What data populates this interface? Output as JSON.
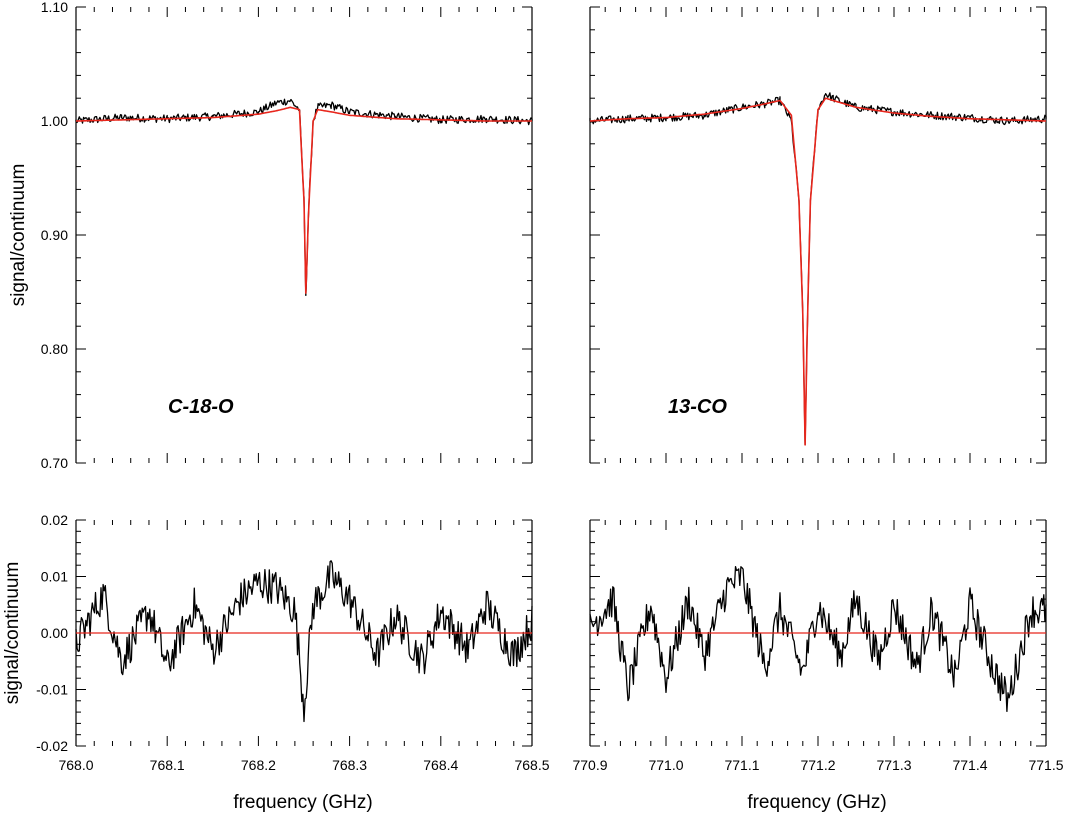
{
  "chart_data": [
    {
      "type": "line",
      "panel": "top-left",
      "label": "C-18-O",
      "xlim": [
        768.0,
        768.5
      ],
      "ylim": [
        0.7,
        1.1
      ],
      "ylabel": "signal/continuum",
      "y_tick_labels": [
        "1.10",
        "1.00",
        "0.90",
        "0.80",
        "0.70"
      ],
      "y_ticks": [
        1.1,
        1.0,
        0.9,
        0.8,
        0.7
      ],
      "series": [
        {
          "role": "data",
          "color": "#000000",
          "x": [
            768.0,
            768.05,
            768.1,
            768.15,
            768.2,
            768.22,
            768.235,
            768.245,
            768.25,
            768.252,
            768.255,
            768.26,
            768.265,
            768.28,
            768.3,
            768.35,
            768.4,
            768.45,
            768.5
          ],
          "y": [
            1.0,
            1.003,
            1.002,
            1.004,
            1.008,
            1.016,
            1.018,
            1.01,
            0.93,
            0.847,
            0.92,
            1.0,
            1.012,
            1.014,
            1.008,
            1.004,
            1.001,
            1.002,
            1.0
          ]
        },
        {
          "role": "fit",
          "color": "#e8261c",
          "x": [
            768.0,
            768.05,
            768.1,
            768.15,
            768.2,
            768.22,
            768.235,
            768.245,
            768.25,
            768.252,
            768.255,
            768.26,
            768.265,
            768.28,
            768.3,
            768.35,
            768.4,
            768.45,
            768.5
          ],
          "y": [
            1.0,
            1.001,
            1.002,
            1.003,
            1.006,
            1.009,
            1.012,
            1.01,
            0.93,
            0.849,
            0.92,
            1.0,
            1.01,
            1.008,
            1.005,
            1.002,
            1.001,
            1.0,
            1.0
          ]
        }
      ]
    },
    {
      "type": "line",
      "panel": "top-right",
      "label": "13-CO",
      "xlim": [
        770.9,
        771.5
      ],
      "ylim": [
        0.7,
        1.1
      ],
      "series": [
        {
          "role": "data",
          "color": "#000000",
          "x": [
            770.9,
            770.95,
            771.0,
            771.05,
            771.1,
            771.13,
            771.15,
            771.165,
            771.175,
            771.18,
            771.183,
            771.186,
            771.19,
            771.2,
            771.21,
            771.22,
            771.25,
            771.3,
            771.35,
            771.4,
            771.45,
            771.5
          ],
          "y": [
            1.0,
            1.002,
            1.003,
            1.005,
            1.012,
            1.015,
            1.018,
            1.0,
            0.93,
            0.83,
            0.716,
            0.82,
            0.93,
            1.01,
            1.024,
            1.02,
            1.012,
            1.008,
            1.005,
            1.003,
            1.0,
            1.002
          ]
        },
        {
          "role": "fit",
          "color": "#e8261c",
          "x": [
            770.9,
            770.95,
            771.0,
            771.05,
            771.1,
            771.13,
            771.15,
            771.165,
            771.175,
            771.18,
            771.183,
            771.186,
            771.19,
            771.2,
            771.21,
            771.22,
            771.25,
            771.3,
            771.35,
            771.4,
            771.45,
            771.5
          ],
          "y": [
            1.0,
            1.002,
            1.003,
            1.006,
            1.011,
            1.015,
            1.018,
            1.005,
            0.93,
            0.83,
            0.716,
            0.82,
            0.93,
            1.01,
            1.02,
            1.018,
            1.012,
            1.007,
            1.004,
            1.002,
            1.001,
            1.0
          ]
        }
      ]
    },
    {
      "type": "line",
      "panel": "bottom-left",
      "xlim": [
        768.0,
        768.5
      ],
      "ylim": [
        -0.02,
        0.02
      ],
      "ylabel": "signal/continuum",
      "xlabel": "frequency (GHz)",
      "x_ticks": [
        768.0,
        768.1,
        768.2,
        768.3,
        768.4,
        768.5
      ],
      "x_tick_labels": [
        "768.0",
        "768.1",
        "768.2",
        "768.3",
        "768.4",
        "768.5"
      ],
      "y_ticks": [
        0.02,
        0.01,
        0.0,
        -0.01,
        -0.02
      ],
      "y_tick_labels": [
        "0.02",
        "0.01",
        "0.00",
        "-0.01",
        "-0.02"
      ],
      "series": [
        {
          "role": "residual",
          "color": "#000000",
          "x": [
            768.0,
            768.03,
            768.05,
            768.08,
            768.1,
            768.13,
            768.15,
            768.18,
            768.2,
            768.22,
            768.24,
            768.25,
            768.26,
            768.28,
            768.3,
            768.33,
            768.35,
            768.38,
            768.4,
            768.43,
            768.45,
            768.48,
            768.5
          ],
          "y": [
            -0.002,
            0.007,
            -0.005,
            0.004,
            -0.006,
            0.005,
            -0.003,
            0.006,
            0.009,
            0.008,
            0.004,
            -0.013,
            0.005,
            0.01,
            0.006,
            -0.004,
            0.003,
            -0.005,
            0.004,
            -0.003,
            0.005,
            -0.004,
            0.002
          ]
        },
        {
          "role": "zero",
          "color": "#e8261c",
          "x": [
            768.0,
            768.5
          ],
          "y": [
            0.0,
            0.0
          ]
        }
      ]
    },
    {
      "type": "line",
      "panel": "bottom-right",
      "xlim": [
        770.9,
        771.5
      ],
      "ylim": [
        -0.02,
        0.02
      ],
      "xlabel": "frequency (GHz)",
      "x_ticks": [
        770.9,
        771.0,
        771.1,
        771.2,
        771.3,
        771.4,
        771.5
      ],
      "x_tick_labels": [
        "770.9",
        "771.0",
        "771.1",
        "771.2",
        "771.3",
        "771.4",
        "771.5"
      ],
      "series": [
        {
          "role": "residual",
          "color": "#000000",
          "x": [
            770.9,
            770.93,
            770.95,
            770.98,
            771.0,
            771.03,
            771.05,
            771.08,
            771.1,
            771.13,
            771.15,
            771.18,
            771.2,
            771.23,
            771.25,
            771.28,
            771.3,
            771.33,
            771.35,
            771.38,
            771.4,
            771.43,
            771.45,
            771.48,
            771.5
          ],
          "y": [
            0.001,
            0.006,
            -0.01,
            0.005,
            -0.008,
            0.006,
            -0.004,
            0.008,
            0.01,
            -0.006,
            0.004,
            -0.007,
            0.005,
            -0.004,
            0.006,
            -0.005,
            0.005,
            -0.006,
            0.004,
            -0.008,
            0.005,
            -0.006,
            -0.012,
            0.004,
            0.004
          ]
        },
        {
          "role": "zero",
          "color": "#e8261c",
          "x": [
            770.9,
            771.5
          ],
          "y": [
            0.0,
            0.0
          ]
        }
      ]
    }
  ]
}
